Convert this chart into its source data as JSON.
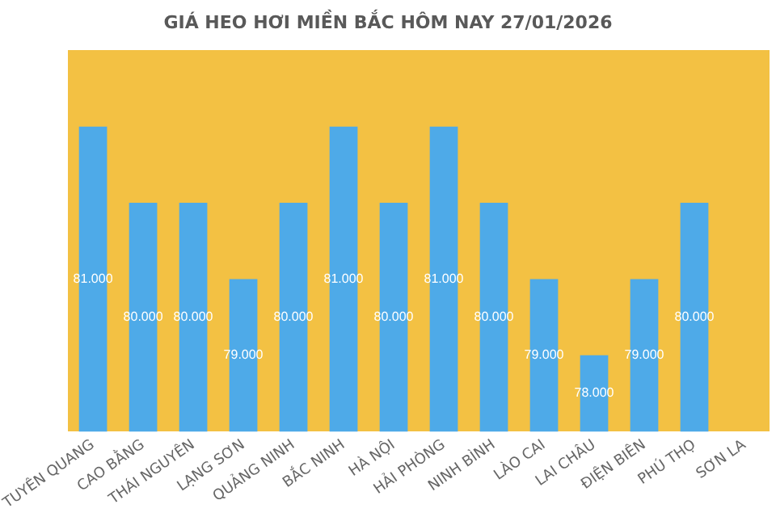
{
  "chart_data": {
    "type": "bar",
    "title": "GIÁ HEO HƠI MIỀN BẮC HÔM NAY 27/01/2026",
    "categories": [
      "TUYÊN QUANG",
      "CAO BẰNG",
      "THÁI NGUYÊN",
      "LẠNG SƠN",
      "QUẢNG NINH",
      "BẮC NINH",
      "HÀ NỘI",
      "HẢI PHÒNG",
      "NINH BÌNH",
      "LÀO CAI",
      "LAI CHÂU",
      "ĐIỆN BIÊN",
      "PHÚ THỌ",
      "SƠN LA"
    ],
    "values": [
      81000,
      80000,
      80000,
      79000,
      80000,
      81000,
      80000,
      81000,
      80000,
      79000,
      78000,
      79000,
      80000,
      null
    ],
    "value_labels": [
      "81.000",
      "80.000",
      "80.000",
      "79.000",
      "80.000",
      "81.000",
      "80.000",
      "81.000",
      "80.000",
      "79.000",
      "78.000",
      "79.000",
      "80.000",
      null
    ],
    "color": "#4eaae8",
    "tick_labels": "x"
  }
}
